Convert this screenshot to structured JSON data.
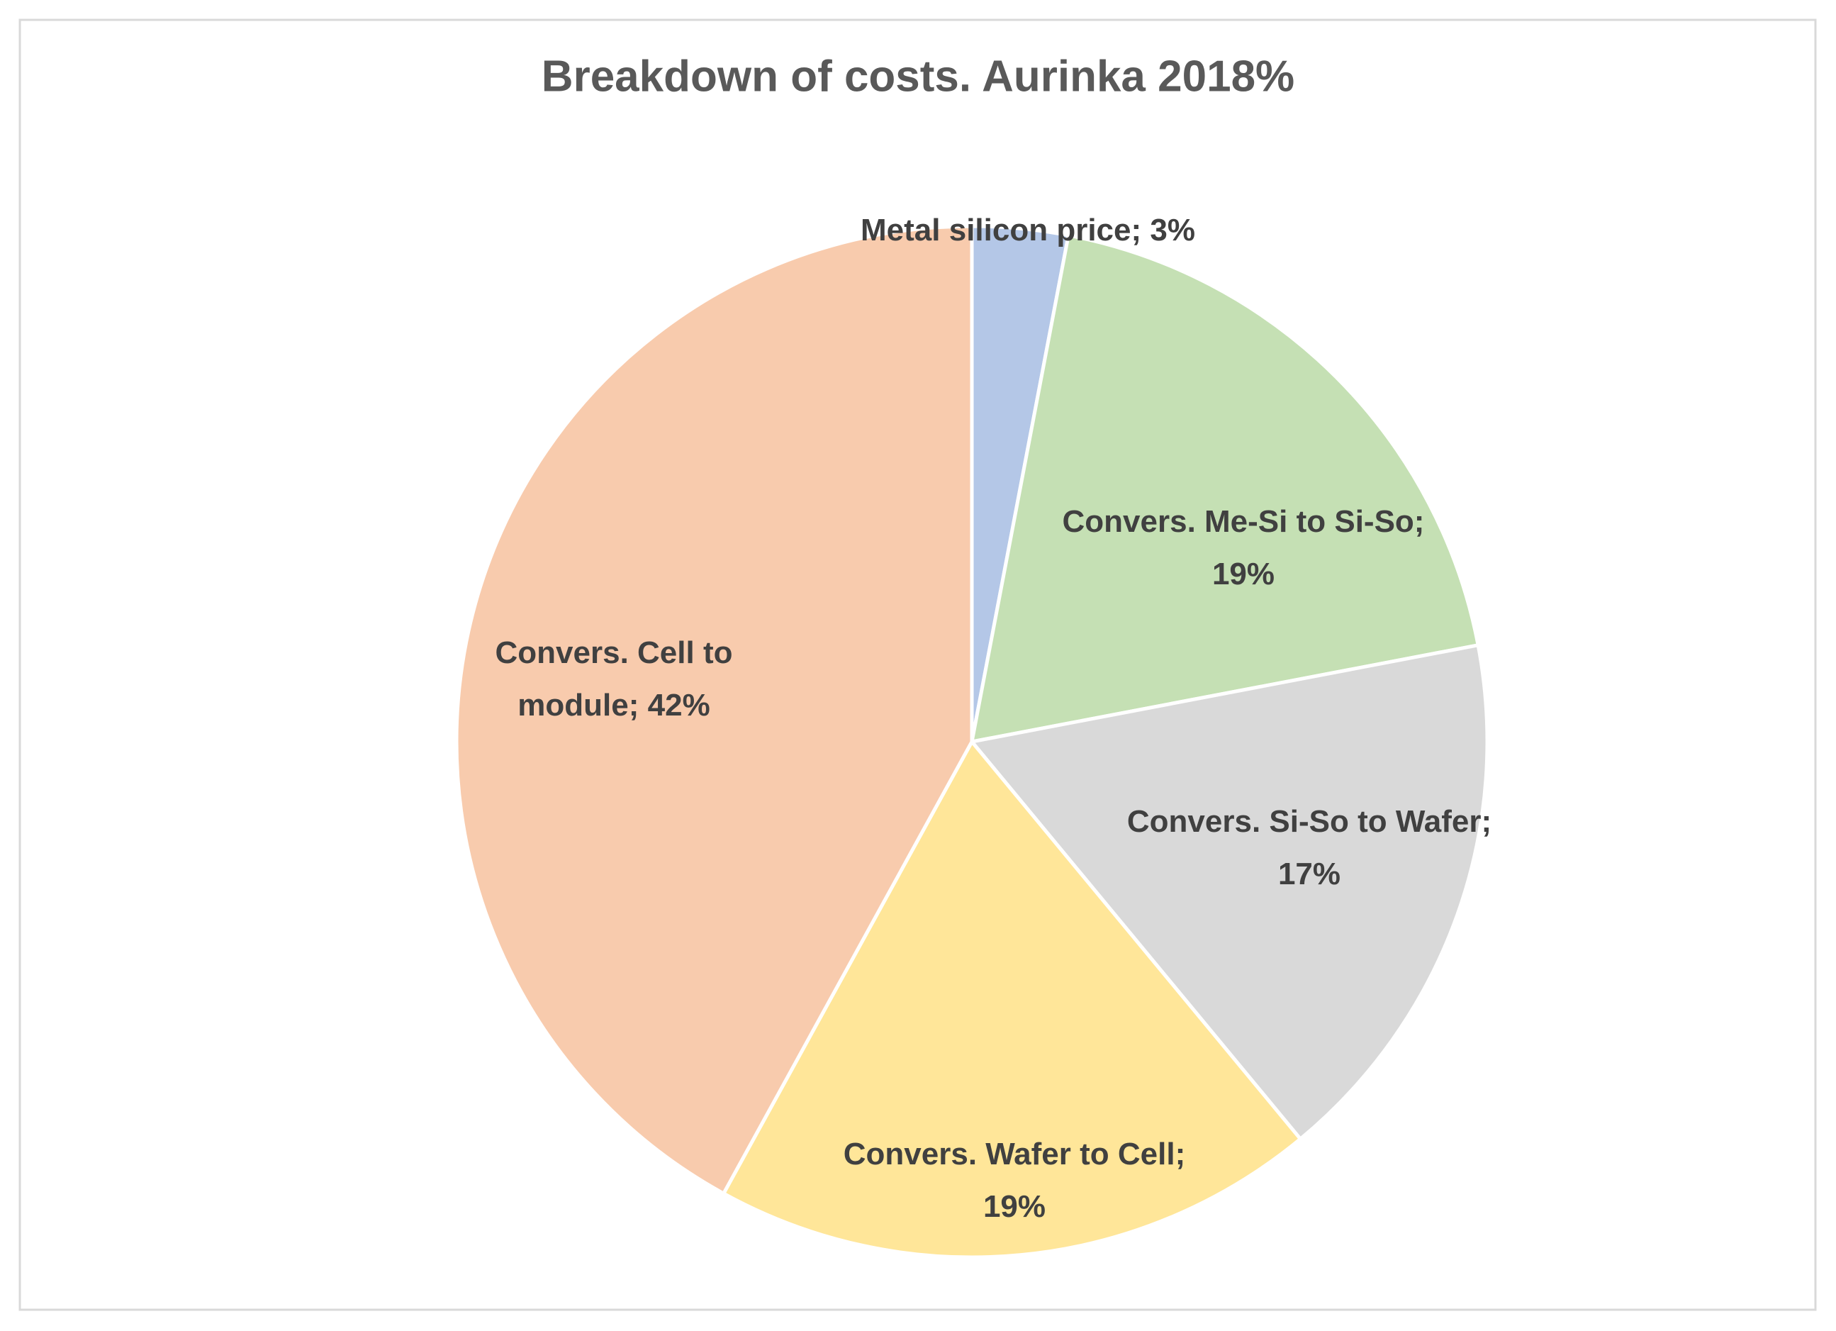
{
  "chart_data": {
    "type": "pie",
    "title": "Breakdown of costs. Aurinka 2018%",
    "values": [
      3,
      19,
      17,
      19,
      42
    ],
    "value_labels": [
      "Metal silicon price; 3%",
      "Convers. Me-Si to Si-So; 19%",
      "Convers. Si-So to Wafer; 17%",
      "Convers. Wafer to Cell; 19%",
      "Convers. Cell to module; 42%"
    ],
    "colors": [
      "#b4c7e7",
      "#c5e0b4",
      "#d9d9d9",
      "#ffe699",
      "#f8cbad"
    ]
  }
}
